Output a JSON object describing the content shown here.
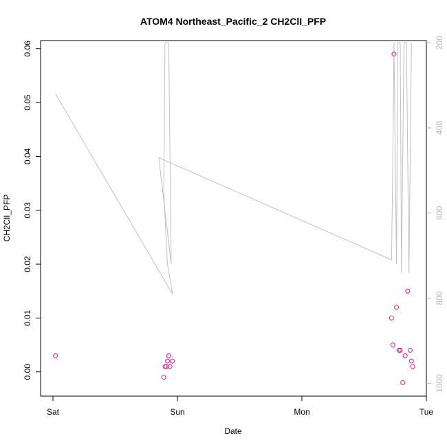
{
  "chart_data": {
    "type": "scatter",
    "title": "ATOM4 Northeast_Pacific_2 CH2ClI_PFP",
    "xlabel": "Date",
    "ylabel": "CH2ClI_PFP",
    "x_ticks": [
      "Sat",
      "Sun",
      "Mon",
      "Tue"
    ],
    "xlim": [
      "Sat",
      "Tue"
    ],
    "ylim": [
      -0.0045,
      0.0615
    ],
    "y_ticks": [
      "0.00",
      "0.01",
      "0.02",
      "0.03",
      "0.04",
      "0.05",
      "0.06"
    ],
    "y2_ticks": [
      "200",
      "400",
      "600",
      "800",
      "1000"
    ],
    "y2lim": [
      1030,
      195
    ],
    "y2_reversed": true,
    "grid": false,
    "point_color": "#e8178f",
    "line_color": "#c0c0c0",
    "series": [
      {
        "type": "scatter",
        "x_days": [
          0.02,
          0.89,
          0.9,
          0.91,
          0.92,
          0.93,
          0.94,
          0.96,
          2.72,
          2.73,
          2.74,
          2.76,
          2.78,
          2.79,
          2.81,
          2.83,
          2.85,
          2.87,
          2.88,
          2.89
        ],
        "values": [
          0.003,
          -0.001,
          0.001,
          0.001,
          0.002,
          0.003,
          0.001,
          0.002,
          0.01,
          0.005,
          0.059,
          0.012,
          0.004,
          0.004,
          -0.002,
          0.003,
          0.015,
          0.004,
          0.002,
          0.001
        ]
      },
      {
        "type": "line",
        "axis": "right",
        "x_days": [
          0.02,
          0.96,
          0.92,
          0.89,
          0.9,
          0.93,
          0.95,
          0.85,
          2.72,
          2.73,
          2.74,
          2.76,
          2.77,
          2.79,
          2.8,
          2.82,
          2.84,
          2.86,
          2.88
        ],
        "values": [
          320,
          790,
          720,
          550,
          200,
          200,
          720,
          470,
          710,
          500,
          200,
          720,
          200,
          200,
          740,
          200,
          200,
          740,
          200
        ]
      }
    ]
  }
}
